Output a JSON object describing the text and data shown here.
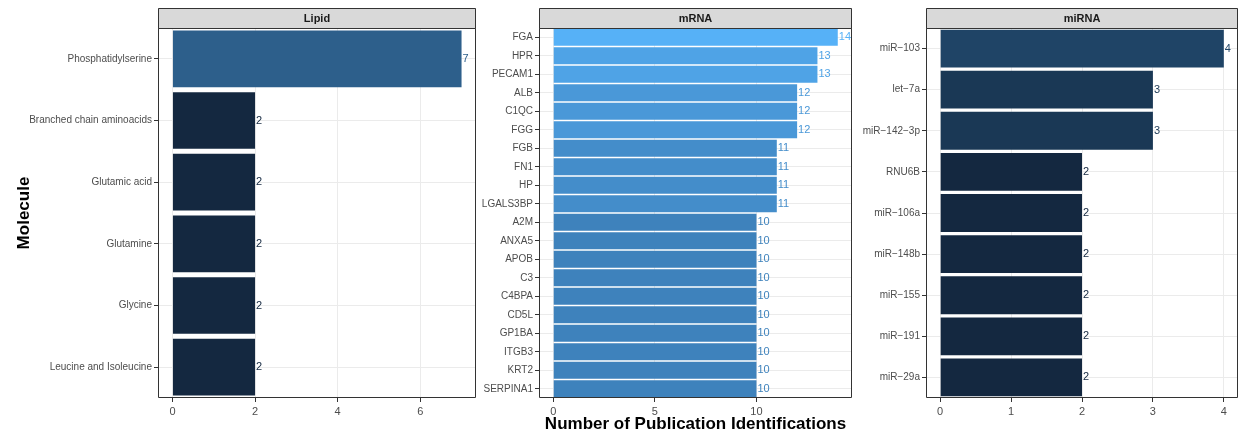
{
  "chart_data": [
    {
      "type": "bar",
      "orientation": "horizontal",
      "title": "Lipid",
      "ylabel": "Molecule",
      "categories": [
        "Phosphatidylserine",
        "Branched chain aminoacids",
        "Glutamic acid",
        "Glutamine",
        "Glycine",
        "Leucine and Isoleucine"
      ],
      "values": [
        7,
        2,
        2,
        2,
        2,
        2
      ],
      "colors": [
        "#2d5f8b",
        "#142840",
        "#142840",
        "#142840",
        "#142840",
        "#142840"
      ],
      "xlim": [
        -0.35,
        7.35
      ],
      "xticks": [
        0,
        2,
        4,
        6
      ],
      "grid": true,
      "data_labels": true,
      "legend": false
    },
    {
      "type": "bar",
      "orientation": "horizontal",
      "title": "mRNA",
      "xlabel": "Number of Publication Identifications",
      "categories": [
        "FGA",
        "HPR",
        "PECAM1",
        "ALB",
        "C1QC",
        "FGG",
        "FGB",
        "FN1",
        "HP",
        "LGALS3BP",
        "A2M",
        "ANXA5",
        "APOB",
        "C3",
        "C4BPA",
        "CD5L",
        "GP1BA",
        "ITGB3",
        "KRT2",
        "SERPINA1"
      ],
      "values": [
        14,
        13,
        13,
        12,
        12,
        12,
        11,
        11,
        11,
        11,
        10,
        10,
        10,
        10,
        10,
        10,
        10,
        10,
        10,
        10
      ],
      "colors": [
        "#56b1f7",
        "#4fa3e6",
        "#4fa3e6",
        "#4a98d8",
        "#4a98d8",
        "#4a98d8",
        "#448dca",
        "#448dca",
        "#448dca",
        "#448dca",
        "#3e82bc",
        "#3e82bc",
        "#3e82bc",
        "#3e82bc",
        "#3e82bc",
        "#3e82bc",
        "#3e82bc",
        "#3e82bc",
        "#3e82bc",
        "#3e82bc"
      ],
      "xlim": [
        -0.7,
        14.7
      ],
      "xticks": [
        0,
        5,
        10
      ],
      "grid": true,
      "data_labels": true,
      "legend": false
    },
    {
      "type": "bar",
      "orientation": "horizontal",
      "title": "miRNA",
      "categories": [
        "miR−103",
        "let−7a",
        "miR−142−3p",
        "RNU6B",
        "miR−106a",
        "miR−148b",
        "miR−155",
        "miR−191",
        "miR−29a"
      ],
      "values": [
        4,
        3,
        3,
        2,
        2,
        2,
        2,
        2,
        2
      ],
      "colors": [
        "#1f4466",
        "#1a3855",
        "#1a3855",
        "#142840",
        "#142840",
        "#142840",
        "#142840",
        "#142840",
        "#142840"
      ],
      "xlim": [
        -0.2,
        4.2
      ],
      "xticks": [
        0,
        1,
        2,
        3,
        4
      ],
      "grid": true,
      "data_labels": true,
      "legend": false
    }
  ]
}
